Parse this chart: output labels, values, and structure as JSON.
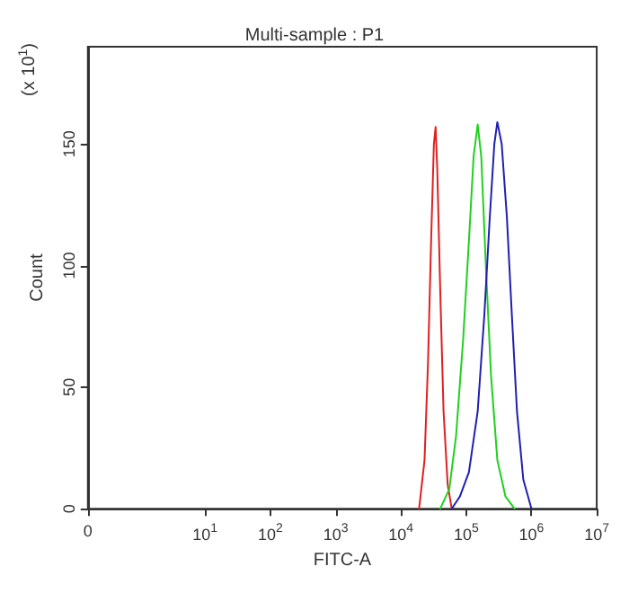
{
  "chart_data": {
    "type": "line",
    "title": "Multi-sample : P1",
    "xlabel": "FITC-A",
    "ylabel": "Count",
    "annotations": [
      "(x 10$^{1}$)"
    ],
    "log": "x",
    "grid": false,
    "marker": "none",
    "line_style": "solid",
    "xlim": [
      0.16,
      10000000
    ],
    "xticks": [
      {
        "value": 0.16,
        "label": "0"
      },
      {
        "value": 10,
        "label": "10$^{1}$"
      },
      {
        "value": 100,
        "label": "10$^{2}$"
      },
      {
        "value": 1000,
        "label": "10$^{3}$"
      },
      {
        "value": 10000,
        "label": "10$^{4}$"
      },
      {
        "value": 100000,
        "label": "10$^{5}$"
      },
      {
        "value": 1000000,
        "label": "10$^{6}$"
      },
      {
        "value": 10000000,
        "label": "10$^{7}$"
      }
    ],
    "ylim": [
      0,
      190
    ],
    "yticks": [
      0,
      50,
      100,
      150
    ],
    "series": [
      {
        "color": "#e02020",
        "x": [
          19000,
          23000,
          26000,
          29000,
          32000,
          34000,
          36000,
          40000,
          45000,
          52000,
          60000
        ],
        "values": [
          0,
          20,
          60,
          110,
          150,
          157,
          140,
          90,
          40,
          10,
          0
        ]
      },
      {
        "color": "#20d020",
        "x": [
          40000,
          55000,
          70000,
          90000,
          110000,
          130000,
          150000,
          170000,
          200000,
          240000,
          300000,
          400000,
          550000
        ],
        "values": [
          0,
          8,
          30,
          70,
          110,
          145,
          158,
          145,
          100,
          55,
          20,
          5,
          0
        ]
      },
      {
        "color": "#2020b0",
        "x": [
          60000,
          80000,
          110000,
          150000,
          190000,
          230000,
          270000,
          300000,
          350000,
          420000,
          500000,
          600000,
          750000,
          1000000
        ],
        "values": [
          0,
          5,
          15,
          40,
          80,
          120,
          150,
          159,
          150,
          120,
          80,
          40,
          12,
          0
        ]
      }
    ]
  }
}
